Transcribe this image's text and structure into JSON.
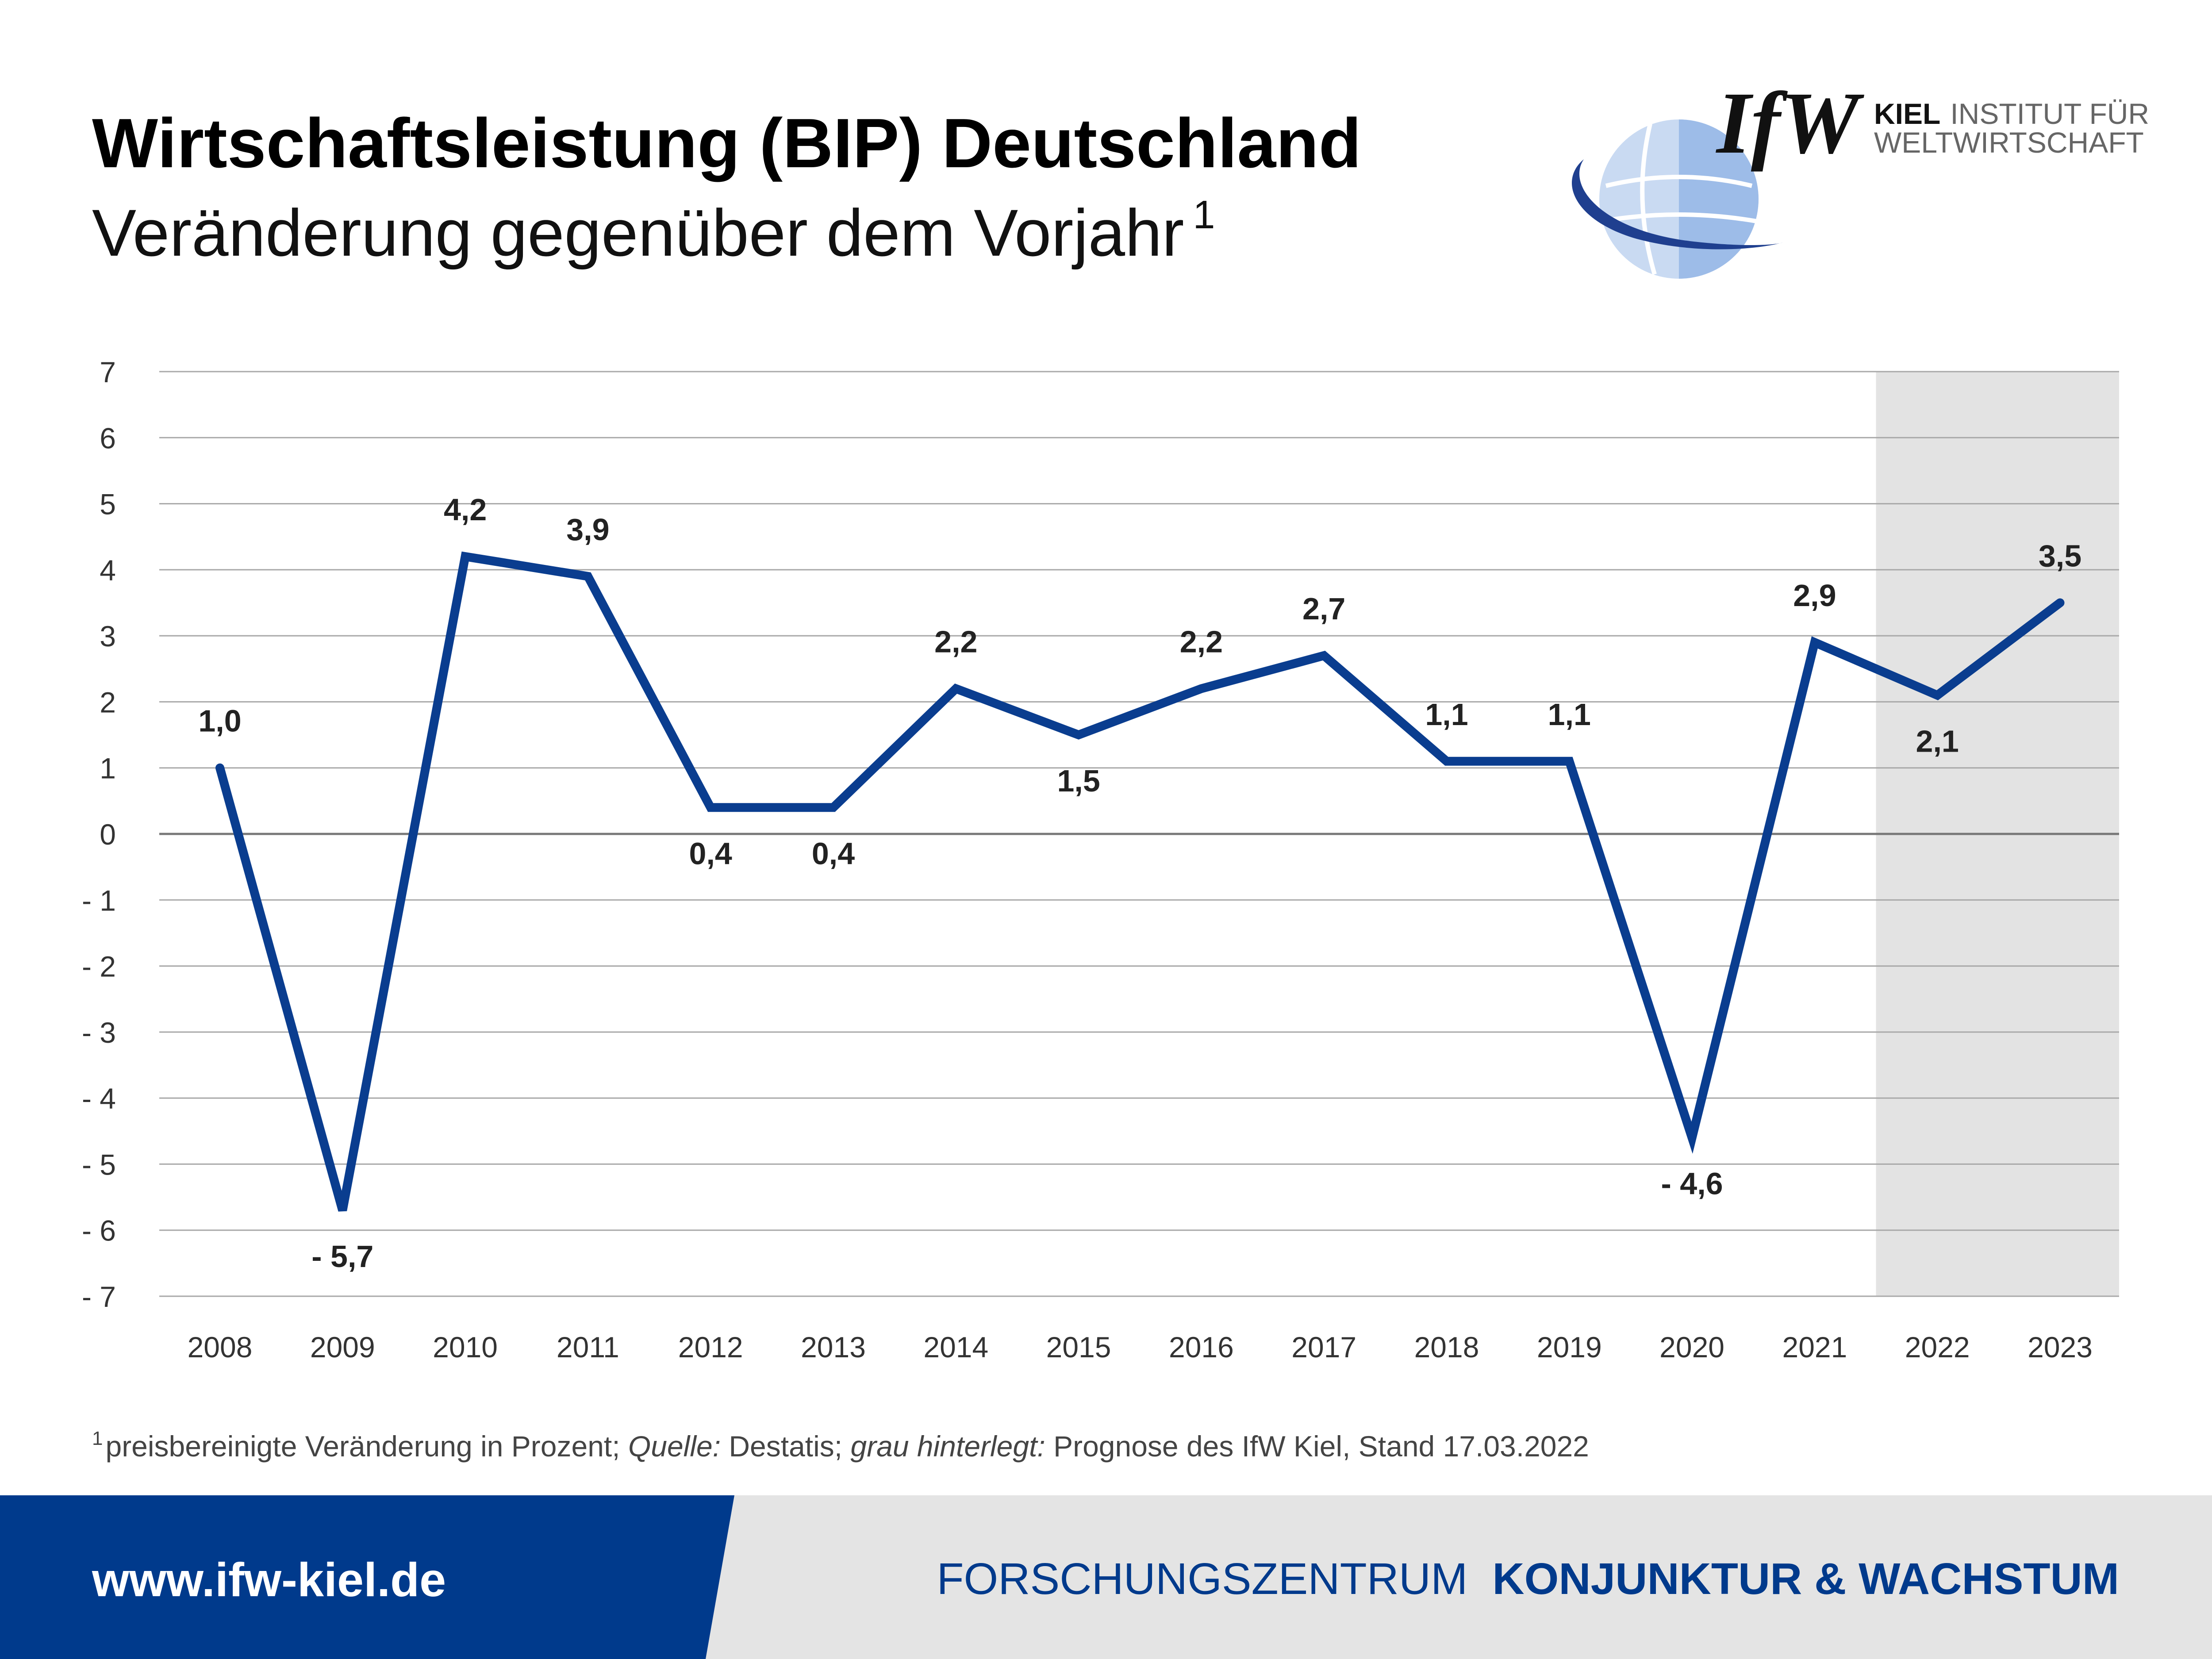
{
  "header": {
    "title": "Wirtschaftsleistung (BIP) Deutschland",
    "subtitle": "Veränderung gegenüber dem Vorjahr",
    "subtitle_note": "1"
  },
  "logo": {
    "wordmark": "IfW",
    "line1_bold": "KIEL",
    "line1_rest": "INSTITUT FÜR",
    "line2": "WELTWIRTSCHAFT"
  },
  "footnote": {
    "marker": "1",
    "part1": "preisbereinigte Veränderung in Prozent; ",
    "source_label": "Quelle:",
    "part2": " Destatis; ",
    "shaded_label": "grau hinterlegt:",
    "part3": " Prognose des IfW Kiel, Stand 17.03.2022"
  },
  "footer": {
    "url": "www.ifw-kiel.de",
    "center_label": "FORSCHUNGSZENTRUM",
    "center_label_strong": "KONJUNKTUR & WACHSTUM"
  },
  "colors": {
    "line": "#0a3d8f",
    "forecast_shading": "#e3e3e3",
    "footer_blue": "#003a8c",
    "footer_grey": "#e4e4e4",
    "logo_blue": "#1f3f8f",
    "logo_light": "#9dbce8"
  },
  "chart_data": {
    "type": "line",
    "x": [
      "2008",
      "2009",
      "2010",
      "2011",
      "2012",
      "2013",
      "2014",
      "2015",
      "2016",
      "2017",
      "2018",
      "2019",
      "2020",
      "2021",
      "2022",
      "2023"
    ],
    "series": [
      {
        "values": [
          1.0,
          -5.7,
          4.2,
          3.9,
          0.4,
          0.4,
          2.2,
          1.5,
          2.2,
          2.7,
          1.1,
          1.1,
          -4.6,
          2.9,
          2.1,
          3.5
        ]
      }
    ],
    "data_labels": [
      "1,0",
      "- 5,7",
      "4,2",
      "3,9",
      "0,4",
      "0,4",
      "2,2",
      "1,5",
      "2,2",
      "2,7",
      "1,1",
      "1,1",
      "- 4,6",
      "2,9",
      "2,1",
      "3,5"
    ],
    "label_position": [
      "above",
      "below",
      "above",
      "above",
      "below",
      "below",
      "above",
      "below",
      "above",
      "above",
      "above",
      "above",
      "below",
      "above",
      "below",
      "above"
    ],
    "yticks": [
      7,
      6,
      5,
      4,
      3,
      2,
      1,
      0,
      -1,
      -2,
      -3,
      -4,
      -5,
      -6,
      -7
    ],
    "ytick_labels": [
      "7",
      "6",
      "5",
      "4",
      "3",
      "2",
      "1",
      "0",
      "- 1",
      "- 2",
      "- 3",
      "- 4",
      "- 5",
      "- 6",
      "- 7"
    ],
    "ylim": [
      -7,
      7
    ],
    "forecast_years": [
      "2022",
      "2023"
    ],
    "grid": "horizontal"
  }
}
